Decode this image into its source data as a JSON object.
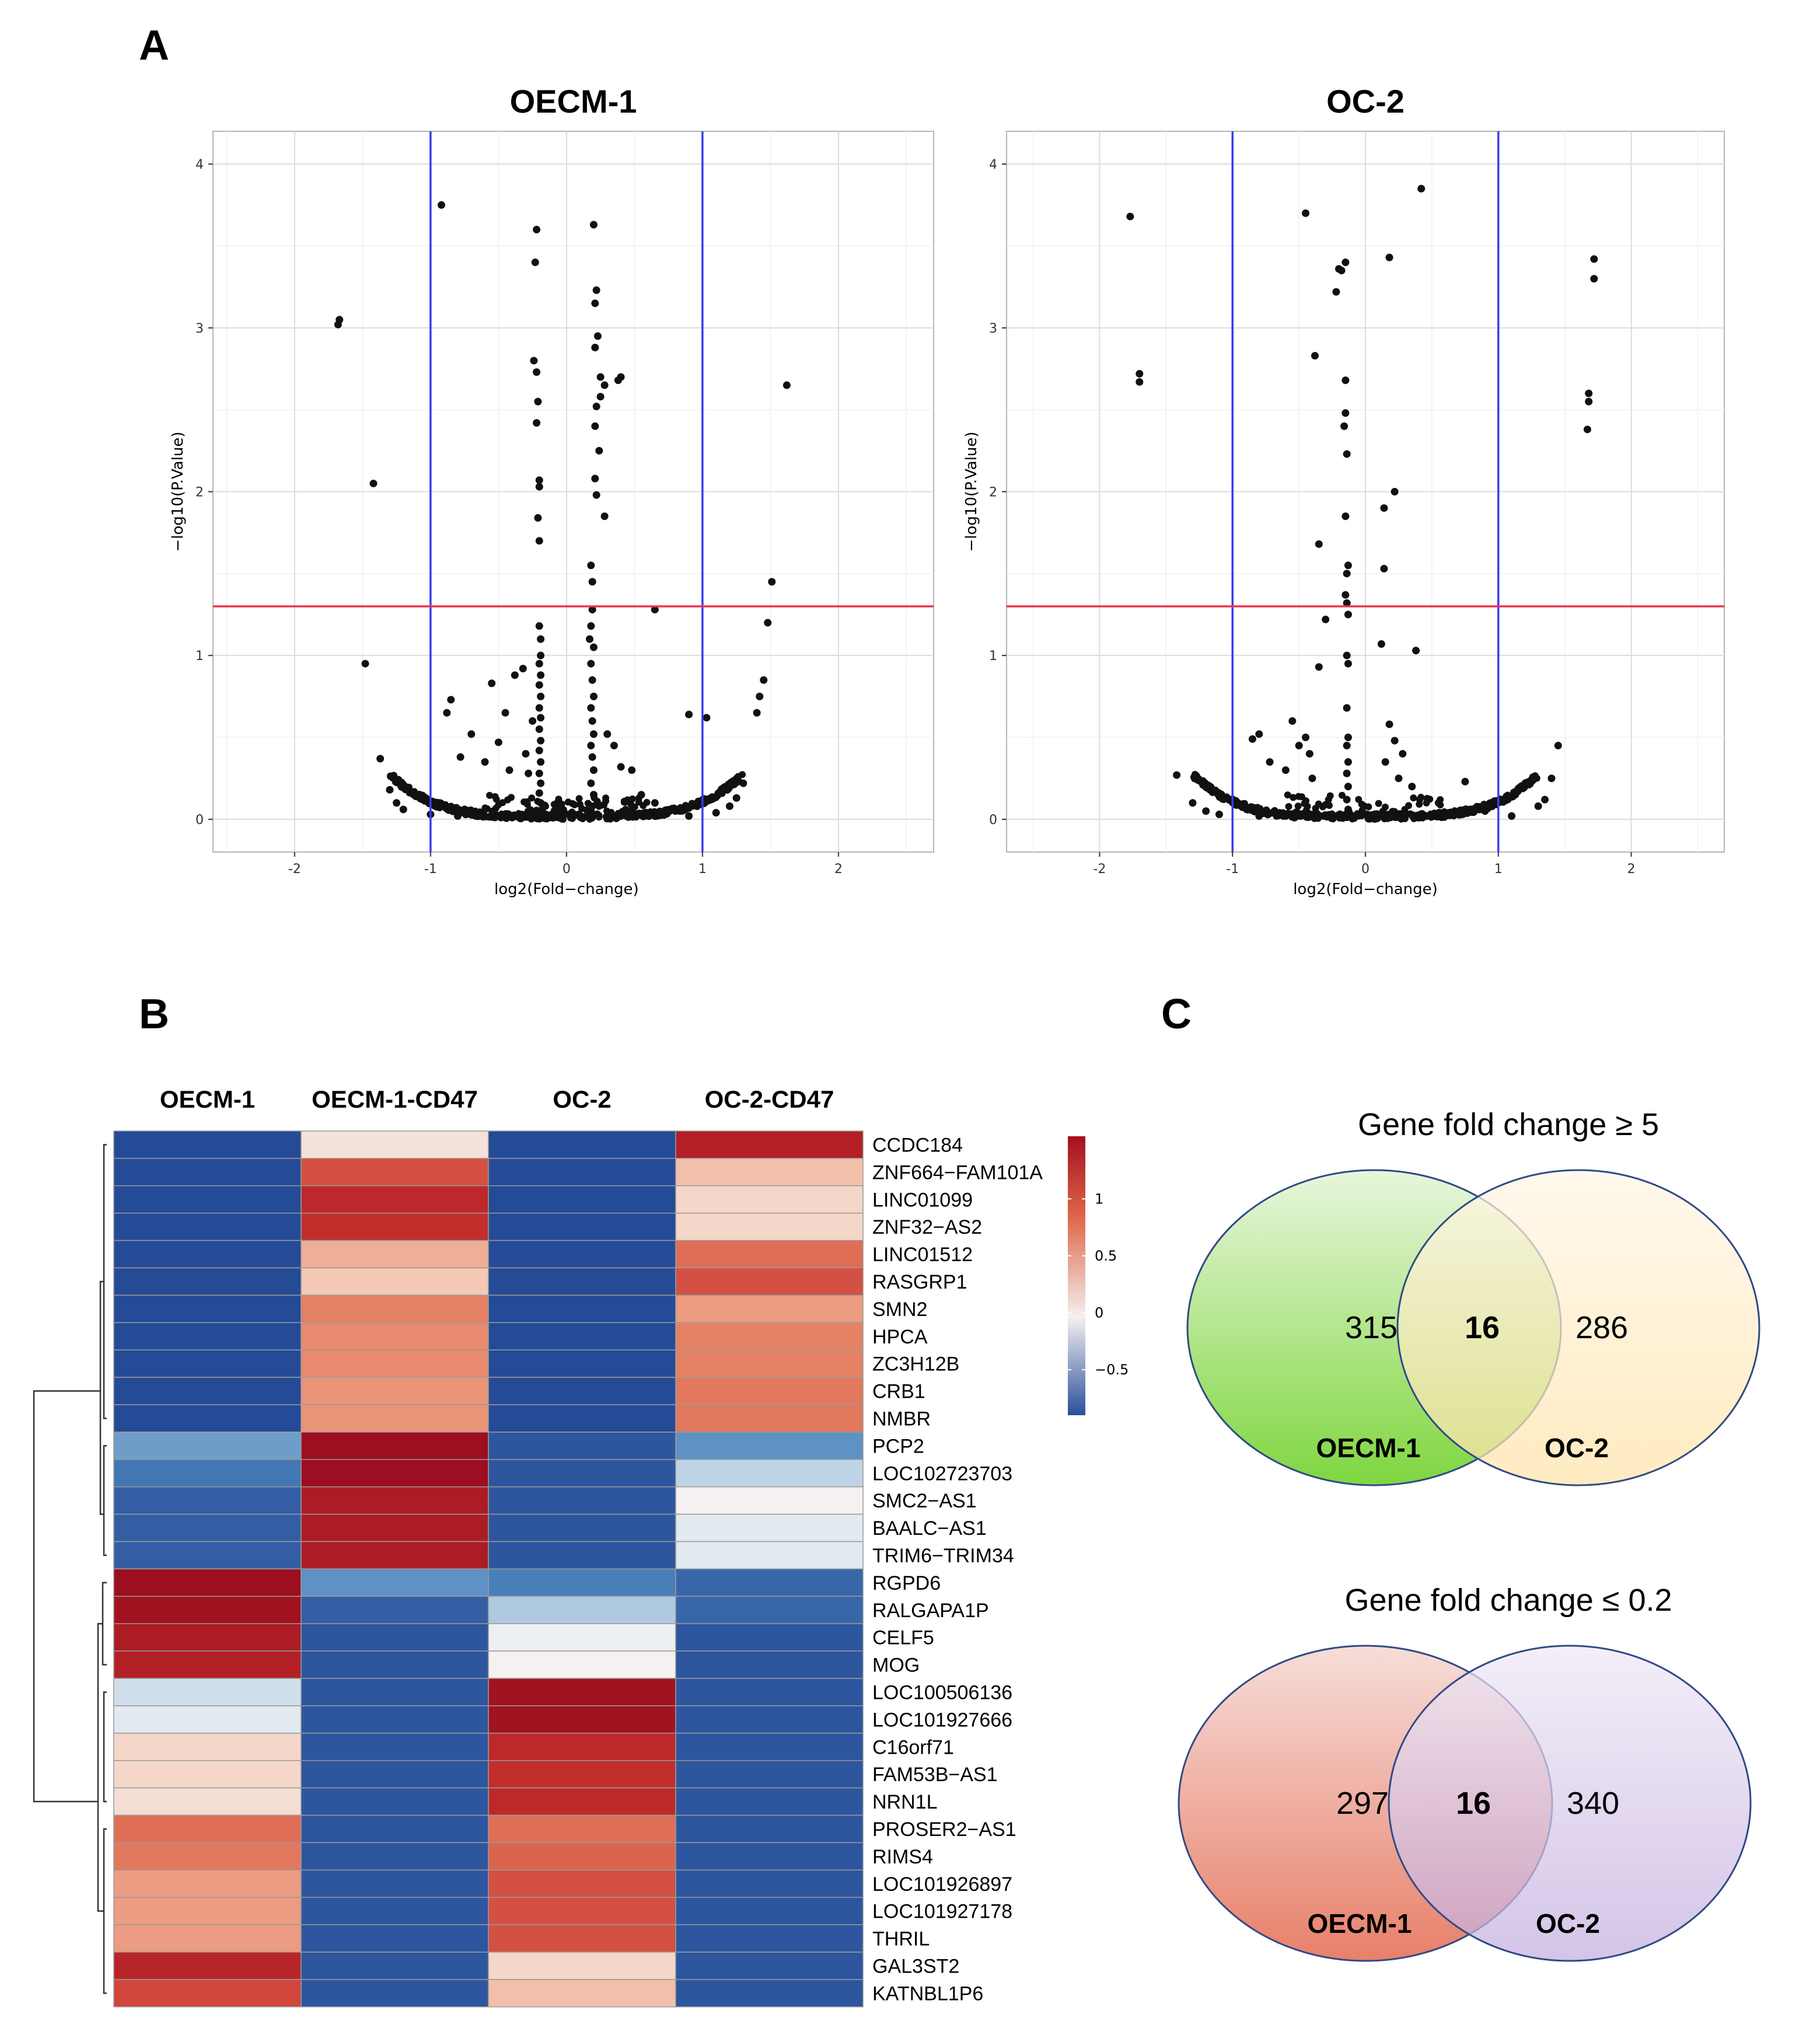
{
  "panels": {
    "a": "A",
    "b": "B",
    "c": "C"
  },
  "chart_data": [
    {
      "type": "scatter",
      "title": "OECM-1",
      "xlabel": "log2(Fold−change)",
      "ylabel": "−log10(P.Value)",
      "xlim": [
        -2.6,
        2.7
      ],
      "ylim": [
        -0.2,
        4.2
      ],
      "xticks": [
        -2,
        -1,
        0,
        1,
        2
      ],
      "yticks": [
        0,
        1,
        2,
        3,
        4
      ],
      "vlines": [
        -1,
        1
      ],
      "hline": 1.3,
      "grid": true,
      "points": [
        [
          -1.68,
          3.02
        ],
        [
          -1.67,
          3.05
        ],
        [
          -0.92,
          3.75
        ],
        [
          -1.42,
          2.05
        ],
        [
          -1.48,
          0.95
        ],
        [
          -1.37,
          0.37
        ],
        [
          -1.3,
          0.18
        ],
        [
          -1.25,
          0.1
        ],
        [
          -1.2,
          0.06
        ],
        [
          -0.88,
          0.65
        ],
        [
          -0.85,
          0.73
        ],
        [
          -0.78,
          0.38
        ],
        [
          -0.7,
          0.52
        ],
        [
          -0.6,
          0.35
        ],
        [
          -0.55,
          0.83
        ],
        [
          -0.5,
          0.47
        ],
        [
          -0.45,
          0.65
        ],
        [
          -0.42,
          0.3
        ],
        [
          -0.38,
          0.88
        ],
        [
          -0.32,
          0.92
        ],
        [
          -0.3,
          0.4
        ],
        [
          -0.28,
          0.28
        ],
        [
          -0.25,
          0.6
        ],
        [
          -0.22,
          3.6
        ],
        [
          -0.23,
          3.4
        ],
        [
          -0.24,
          2.8
        ],
        [
          -0.22,
          2.73
        ],
        [
          -0.21,
          2.55
        ],
        [
          -0.22,
          2.42
        ],
        [
          -0.2,
          2.07
        ],
        [
          -0.2,
          2.03
        ],
        [
          -0.21,
          1.84
        ],
        [
          -0.2,
          1.7
        ],
        [
          -0.2,
          1.18
        ],
        [
          -0.19,
          1.1
        ],
        [
          -0.19,
          1.0
        ],
        [
          -0.2,
          0.95
        ],
        [
          -0.19,
          0.88
        ],
        [
          -0.2,
          0.82
        ],
        [
          -0.19,
          0.75
        ],
        [
          -0.2,
          0.68
        ],
        [
          -0.19,
          0.62
        ],
        [
          -0.2,
          0.55
        ],
        [
          -0.19,
          0.48
        ],
        [
          -0.2,
          0.42
        ],
        [
          -0.19,
          0.35
        ],
        [
          -0.2,
          0.28
        ],
        [
          -0.19,
          0.22
        ],
        [
          -0.2,
          0.16
        ],
        [
          -0.19,
          0.1
        ],
        [
          -0.18,
          0.06
        ],
        [
          0.2,
          3.63
        ],
        [
          0.22,
          3.23
        ],
        [
          0.21,
          3.15
        ],
        [
          0.23,
          2.95
        ],
        [
          0.21,
          2.88
        ],
        [
          0.25,
          2.7
        ],
        [
          0.28,
          2.65
        ],
        [
          0.25,
          2.58
        ],
        [
          0.22,
          2.52
        ],
        [
          0.21,
          2.4
        ],
        [
          0.24,
          2.25
        ],
        [
          0.21,
          2.08
        ],
        [
          0.22,
          1.98
        ],
        [
          0.28,
          1.85
        ],
        [
          0.38,
          2.68
        ],
        [
          0.4,
          2.7
        ],
        [
          0.18,
          1.55
        ],
        [
          0.19,
          1.45
        ],
        [
          0.19,
          1.28
        ],
        [
          0.65,
          1.28
        ],
        [
          0.18,
          1.18
        ],
        [
          0.17,
          1.1
        ],
        [
          0.2,
          1.05
        ],
        [
          0.18,
          0.95
        ],
        [
          0.19,
          0.85
        ],
        [
          0.2,
          0.75
        ],
        [
          0.18,
          0.68
        ],
        [
          0.19,
          0.6
        ],
        [
          0.2,
          0.52
        ],
        [
          0.18,
          0.45
        ],
        [
          0.19,
          0.38
        ],
        [
          0.2,
          0.3
        ],
        [
          0.18,
          0.22
        ],
        [
          0.2,
          0.15
        ],
        [
          0.19,
          0.08
        ],
        [
          0.3,
          0.52
        ],
        [
          0.35,
          0.45
        ],
        [
          0.4,
          0.32
        ],
        [
          0.48,
          0.3
        ],
        [
          0.55,
          0.15
        ],
        [
          0.65,
          0.1
        ],
        [
          0.9,
          0.64
        ],
        [
          1.03,
          0.62
        ],
        [
          0.8,
          0.05
        ],
        [
          1.2,
          0.08
        ],
        [
          1.25,
          0.13
        ],
        [
          1.3,
          0.22
        ],
        [
          1.4,
          0.65
        ],
        [
          1.42,
          0.75
        ],
        [
          1.45,
          0.85
        ],
        [
          1.48,
          1.2
        ],
        [
          1.51,
          1.45
        ],
        [
          1.62,
          2.65
        ],
        [
          -1.0,
          0.03
        ],
        [
          -0.8,
          0.02
        ],
        [
          -0.6,
          0.02
        ],
        [
          -0.4,
          0.01
        ],
        [
          0.4,
          0.02
        ],
        [
          0.6,
          0.02
        ],
        [
          0.9,
          0.02
        ],
        [
          1.1,
          0.04
        ]
      ],
      "dense_band": [
        -1.3,
        1.3
      ]
    },
    {
      "type": "scatter",
      "title": "OC-2",
      "xlabel": "log2(Fold−change)",
      "ylabel": "−log10(P.Value)",
      "xlim": [
        -2.7,
        2.7
      ],
      "ylim": [
        -0.2,
        4.2
      ],
      "xticks": [
        -2,
        -1,
        0,
        1,
        2
      ],
      "yticks": [
        0,
        1,
        2,
        3,
        4
      ],
      "vlines": [
        -1,
        1
      ],
      "hline": 1.3,
      "grid": true,
      "points": [
        [
          -1.77,
          3.68
        ],
        [
          -1.7,
          2.72
        ],
        [
          -1.7,
          2.67
        ],
        [
          -1.42,
          0.27
        ],
        [
          -1.3,
          0.1
        ],
        [
          -1.2,
          0.05
        ],
        [
          -1.1,
          0.03
        ],
        [
          -0.85,
          0.49
        ],
        [
          -0.8,
          0.52
        ],
        [
          -0.72,
          0.35
        ],
        [
          -0.6,
          0.3
        ],
        [
          -0.55,
          0.6
        ],
        [
          -0.5,
          0.45
        ],
        [
          -0.45,
          0.5
        ],
        [
          -0.4,
          0.25
        ],
        [
          -0.42,
          0.4
        ],
        [
          -0.45,
          3.7
        ],
        [
          -0.38,
          2.83
        ],
        [
          -0.35,
          1.68
        ],
        [
          -0.3,
          1.22
        ],
        [
          -0.35,
          0.93
        ],
        [
          -0.2,
          3.36
        ],
        [
          -0.18,
          3.35
        ],
        [
          -0.15,
          3.4
        ],
        [
          -0.22,
          3.22
        ],
        [
          -0.15,
          2.68
        ],
        [
          -0.15,
          2.48
        ],
        [
          -0.16,
          2.4
        ],
        [
          -0.14,
          2.23
        ],
        [
          -0.15,
          1.85
        ],
        [
          -0.13,
          1.55
        ],
        [
          -0.14,
          1.5
        ],
        [
          -0.15,
          1.37
        ],
        [
          -0.14,
          1.32
        ],
        [
          -0.13,
          1.25
        ],
        [
          -0.14,
          1.0
        ],
        [
          -0.13,
          0.95
        ],
        [
          -0.14,
          0.68
        ],
        [
          -0.13,
          0.5
        ],
        [
          -0.14,
          0.45
        ],
        [
          -0.13,
          0.35
        ],
        [
          -0.14,
          0.28
        ],
        [
          -0.13,
          0.2
        ],
        [
          -0.14,
          0.12
        ],
        [
          -0.13,
          0.06
        ],
        [
          0.18,
          3.43
        ],
        [
          0.42,
          3.85
        ],
        [
          0.22,
          2.0
        ],
        [
          0.14,
          1.9
        ],
        [
          0.14,
          1.53
        ],
        [
          0.12,
          1.07
        ],
        [
          0.38,
          1.03
        ],
        [
          0.18,
          0.58
        ],
        [
          0.22,
          0.48
        ],
        [
          0.28,
          0.4
        ],
        [
          0.15,
          0.35
        ],
        [
          0.25,
          0.25
        ],
        [
          0.35,
          0.2
        ],
        [
          0.75,
          0.23
        ],
        [
          0.55,
          0.1
        ],
        [
          0.9,
          0.05
        ],
        [
          1.3,
          0.08
        ],
        [
          1.35,
          0.12
        ],
        [
          1.4,
          0.25
        ],
        [
          1.45,
          0.45
        ],
        [
          1.68,
          2.6
        ],
        [
          1.68,
          2.55
        ],
        [
          1.67,
          2.38
        ],
        [
          1.72,
          3.42
        ],
        [
          1.72,
          3.3
        ],
        [
          -0.8,
          0.02
        ],
        [
          -0.6,
          0.02
        ],
        [
          -0.3,
          0.02
        ],
        [
          0.3,
          0.02
        ],
        [
          0.6,
          0.02
        ],
        [
          1.1,
          0.02
        ]
      ],
      "dense_band": [
        -1.3,
        1.3
      ]
    },
    {
      "type": "heatmap",
      "columns": [
        "OECM-1",
        "OECM-1-CD47",
        "OC-2",
        "OC-2-CD47"
      ],
      "rows": [
        "CCDC184",
        "ZNF664−FAM101A",
        "LINC01099",
        "ZNF32−AS2",
        "LINC01512",
        "RASGRP1",
        "SMN2",
        "HPCA",
        "ZC3H12B",
        "CRB1",
        "NMBR",
        "PCP2",
        "LOC102723703",
        "SMC2−AS1",
        "BAALC−AS1",
        "TRIM6−TRIM34",
        "RGPD6",
        "RALGAPA1P",
        "CELF5",
        "MOG",
        "LOC100506136",
        "LOC101927666",
        "C16orf71",
        "FAM53B−AS1",
        "NRN1L",
        "PROSER2−AS1",
        "RIMS4",
        "LOC101926897",
        "LOC101927178",
        "THRIL",
        "GAL3ST2",
        "KATNBL1P6"
      ],
      "values": [
        [
          -0.87,
          0.12,
          -0.87,
          1.3
        ],
        [
          -0.87,
          0.95,
          -0.87,
          0.35
        ],
        [
          -0.87,
          1.2,
          -0.87,
          0.2
        ],
        [
          -0.87,
          1.15,
          -0.87,
          0.2
        ],
        [
          -0.87,
          0.45,
          -0.87,
          0.8
        ],
        [
          -0.87,
          0.3,
          -0.87,
          0.95
        ],
        [
          -0.87,
          0.7,
          -0.87,
          0.55
        ],
        [
          -0.87,
          0.65,
          -0.87,
          0.7
        ],
        [
          -0.87,
          0.65,
          -0.87,
          0.7
        ],
        [
          -0.87,
          0.6,
          -0.87,
          0.75
        ],
        [
          -0.87,
          0.6,
          -0.87,
          0.75
        ],
        [
          -0.4,
          1.5,
          -0.8,
          -0.45
        ],
        [
          -0.6,
          1.5,
          -0.8,
          -0.15
        ],
        [
          -0.75,
          1.35,
          -0.8,
          0.02
        ],
        [
          -0.75,
          1.35,
          -0.8,
          -0.05
        ],
        [
          -0.75,
          1.35,
          -0.8,
          -0.05
        ],
        [
          1.5,
          -0.45,
          -0.55,
          -0.7
        ],
        [
          1.45,
          -0.75,
          -0.2,
          -0.7
        ],
        [
          1.35,
          -0.8,
          -0.02,
          -0.8
        ],
        [
          1.3,
          -0.8,
          0.02,
          -0.8
        ],
        [
          -0.1,
          -0.8,
          1.45,
          -0.8
        ],
        [
          -0.05,
          -0.8,
          1.45,
          -0.8
        ],
        [
          0.2,
          -0.8,
          1.2,
          -0.8
        ],
        [
          0.2,
          -0.8,
          1.15,
          -0.8
        ],
        [
          0.15,
          -0.8,
          1.2,
          -0.8
        ],
        [
          0.8,
          -0.8,
          0.8,
          -0.8
        ],
        [
          0.75,
          -0.8,
          0.85,
          -0.8
        ],
        [
          0.55,
          -0.8,
          0.95,
          -0.8
        ],
        [
          0.55,
          -0.8,
          0.95,
          -0.8
        ],
        [
          0.55,
          -0.8,
          0.95,
          -0.8
        ],
        [
          1.25,
          -0.8,
          0.2,
          -0.8
        ],
        [
          1.0,
          -0.8,
          0.35,
          -0.8
        ]
      ],
      "row_dendrogram": true,
      "legend": {
        "ticks": [
          "1",
          "0.5",
          "0",
          "−0.5"
        ],
        "tick_values": [
          1,
          0.5,
          0,
          -0.5
        ],
        "range": [
          -0.9,
          1.55
        ]
      }
    },
    {
      "type": "venn",
      "title": "Gene fold change ≥ 5",
      "sets": [
        "OECM-1",
        "OC-2"
      ],
      "only_a": "315",
      "overlap": "16",
      "only_b": "286",
      "colors": {
        "a_top": "#e8f6dc",
        "a_bottom": "#7fd640",
        "b_top": "#fff6e6",
        "b_bottom": "#ffe3a8",
        "stroke": "#2f4a86"
      }
    },
    {
      "type": "venn",
      "title": "Gene fold change ≤ 0.2",
      "sets": [
        "OECM-1",
        "OC-2"
      ],
      "only_a": "297",
      "overlap": "16",
      "only_b": "340",
      "colors": {
        "a_top": "#f6ddd8",
        "a_bottom": "#e8806a",
        "b_top": "#efe8f6",
        "b_bottom": "#c3aede",
        "stroke": "#2f4a86"
      }
    }
  ]
}
